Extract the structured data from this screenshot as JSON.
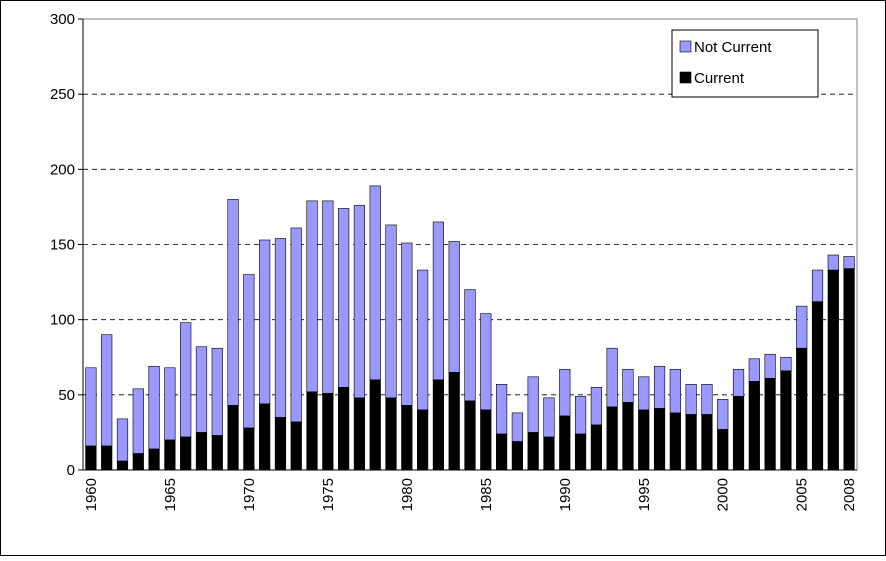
{
  "chart_data": {
    "type": "stacked_bar",
    "categories": [
      "1960",
      null,
      null,
      null,
      null,
      "1965",
      null,
      null,
      null,
      null,
      "1970",
      null,
      null,
      null,
      null,
      "1975",
      null,
      null,
      null,
      null,
      "1980",
      null,
      null,
      null,
      null,
      "1985",
      null,
      null,
      null,
      null,
      "1990",
      null,
      null,
      null,
      null,
      "1995",
      null,
      null,
      null,
      null,
      "2000",
      null,
      null,
      null,
      null,
      "2005",
      null,
      null,
      "2008"
    ],
    "series": [
      {
        "name": "Current",
        "color": "#000000",
        "values": [
          16,
          16,
          6,
          11,
          14,
          20,
          22,
          25,
          23,
          43,
          28,
          44,
          35,
          32,
          52,
          51,
          55,
          48,
          60,
          48,
          43,
          40,
          60,
          65,
          46,
          40,
          24,
          19,
          25,
          22,
          36,
          24,
          30,
          42,
          45,
          40,
          41,
          38,
          37,
          37,
          27,
          49,
          59,
          61,
          66,
          81,
          112,
          133,
          134
        ]
      },
      {
        "name": "Not Current",
        "color": "#9999ff",
        "values": [
          52,
          74,
          28,
          43,
          55,
          48,
          76,
          57,
          58,
          137,
          102,
          109,
          119,
          129,
          127,
          128,
          119,
          128,
          129,
          115,
          108,
          93,
          105,
          87,
          74,
          64,
          33,
          19,
          37,
          26,
          31,
          25,
          25,
          39,
          22,
          22,
          28,
          29,
          20,
          20,
          20,
          18,
          15,
          16,
          9,
          28,
          21,
          10,
          8
        ]
      }
    ],
    "ylim": [
      0,
      300
    ],
    "yticks": [
      0,
      50,
      100,
      150,
      200,
      250,
      300
    ],
    "grid": true,
    "legend": "top-right"
  }
}
